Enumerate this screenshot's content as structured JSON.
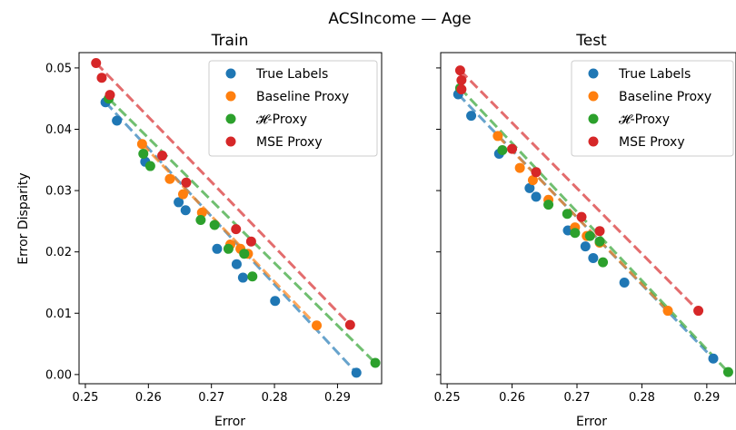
{
  "figure": {
    "suptitle": "ACSIncome — Age"
  },
  "colors": {
    "True Labels": "#1f77b4",
    "Baseline Proxy": "#ff7f0e",
    "H-Proxy": "#2ca02c",
    "MSE Proxy": "#d62728"
  },
  "chart_data": [
    {
      "type": "scatter",
      "title": "Train",
      "xlabel": "Error",
      "ylabel": "Error Disparity",
      "xlim": [
        0.249,
        0.297
      ],
      "ylim": [
        -0.0015,
        0.0525
      ],
      "xticks": [
        0.25,
        0.26,
        0.27,
        0.28,
        0.29
      ],
      "xtick_labels": [
        "0.25",
        "0.26",
        "0.27",
        "0.28",
        "0.29"
      ],
      "yticks": [
        0.0,
        0.01,
        0.02,
        0.03,
        0.04,
        0.05
      ],
      "ytick_labels": [
        "0.00",
        "0.01",
        "0.02",
        "0.03",
        "0.04",
        "0.05"
      ],
      "grid": false,
      "legend": "top-right",
      "series": [
        {
          "name": "True Labels",
          "color": "#1f77b4",
          "points": [
            [
              0.2532,
              0.0444
            ],
            [
              0.255,
              0.0414
            ],
            [
              0.2595,
              0.0347
            ],
            [
              0.2648,
              0.0281
            ],
            [
              0.2659,
              0.0268
            ],
            [
              0.2709,
              0.0205
            ],
            [
              0.274,
              0.018
            ],
            [
              0.275,
              0.0158
            ],
            [
              0.2801,
              0.012
            ],
            [
              0.293,
              0.0003
            ]
          ],
          "line": [
            [
              0.2532,
              0.0444
            ],
            [
              0.293,
              0.0003
            ]
          ]
        },
        {
          "name": "Baseline Proxy",
          "color": "#ff7f0e",
          "points": [
            [
              0.259,
              0.0376
            ],
            [
              0.2634,
              0.0319
            ],
            [
              0.2655,
              0.0294
            ],
            [
              0.2685,
              0.0264
            ],
            [
              0.273,
              0.0212
            ],
            [
              0.2746,
              0.0205
            ],
            [
              0.2758,
              0.0197
            ],
            [
              0.2867,
              0.008
            ]
          ],
          "line": [
            [
              0.259,
              0.0376
            ],
            [
              0.2867,
              0.008
            ]
          ]
        },
        {
          "name": "H-Proxy",
          "label": "𝓗-Proxy",
          "color": "#2ca02c",
          "points": [
            [
              0.2537,
              0.045
            ],
            [
              0.2592,
              0.036
            ],
            [
              0.2603,
              0.034
            ],
            [
              0.2683,
              0.0252
            ],
            [
              0.2705,
              0.0244
            ],
            [
              0.2727,
              0.0205
            ],
            [
              0.2752,
              0.0197
            ],
            [
              0.2765,
              0.016
            ],
            [
              0.296,
              0.0019
            ]
          ],
          "line": [
            [
              0.2537,
              0.045
            ],
            [
              0.296,
              0.0019
            ]
          ]
        },
        {
          "name": "MSE Proxy",
          "color": "#d62728",
          "points": [
            [
              0.2517,
              0.0508
            ],
            [
              0.2526,
              0.0484
            ],
            [
              0.2539,
              0.0456
            ],
            [
              0.2622,
              0.0357
            ],
            [
              0.266,
              0.0313
            ],
            [
              0.2739,
              0.0237
            ],
            [
              0.2763,
              0.0217
            ],
            [
              0.292,
              0.0081
            ]
          ],
          "line": [
            [
              0.2517,
              0.0508
            ],
            [
              0.292,
              0.0081
            ]
          ]
        }
      ]
    },
    {
      "type": "scatter",
      "title": "Test",
      "xlabel": "Error",
      "ylabel": "",
      "xlim": [
        0.249,
        0.2945
      ],
      "ylim": [
        -0.0015,
        0.0525
      ],
      "xticks": [
        0.25,
        0.26,
        0.27,
        0.28,
        0.29
      ],
      "xtick_labels": [
        "0.25",
        "0.26",
        "0.27",
        "0.28",
        "0.29"
      ],
      "yticks": [
        0.0,
        0.01,
        0.02,
        0.03,
        0.04,
        0.05
      ],
      "ytick_labels": [
        "",
        "",
        "",
        "",
        "",
        ""
      ],
      "grid": false,
      "legend": "top-right",
      "series": [
        {
          "name": "True Labels",
          "color": "#1f77b4",
          "points": [
            [
              0.2517,
              0.0457
            ],
            [
              0.2537,
              0.0422
            ],
            [
              0.258,
              0.036
            ],
            [
              0.2627,
              0.0304
            ],
            [
              0.2637,
              0.029
            ],
            [
              0.2686,
              0.0235
            ],
            [
              0.2713,
              0.0209
            ],
            [
              0.2725,
              0.019
            ],
            [
              0.2773,
              0.015
            ],
            [
              0.291,
              0.0026
            ]
          ],
          "line": [
            [
              0.2517,
              0.0457
            ],
            [
              0.291,
              0.0026
            ]
          ]
        },
        {
          "name": "Baseline Proxy",
          "color": "#ff7f0e",
          "points": [
            [
              0.2578,
              0.0389
            ],
            [
              0.2612,
              0.0337
            ],
            [
              0.2632,
              0.0317
            ],
            [
              0.2656,
              0.0285
            ],
            [
              0.2697,
              0.024
            ],
            [
              0.2715,
              0.0226
            ],
            [
              0.2735,
              0.0215
            ],
            [
              0.284,
              0.0104
            ]
          ],
          "line": [
            [
              0.2578,
              0.0389
            ],
            [
              0.284,
              0.0104
            ]
          ]
        },
        {
          "name": "H-Proxy",
          "label": "𝓗-Proxy",
          "color": "#2ca02c",
          "points": [
            [
              0.252,
              0.0467
            ],
            [
              0.2585,
              0.0366
            ],
            [
              0.2656,
              0.0277
            ],
            [
              0.2685,
              0.0262
            ],
            [
              0.2697,
              0.0231
            ],
            [
              0.272,
              0.0226
            ],
            [
              0.2735,
              0.0217
            ],
            [
              0.274,
              0.0183
            ],
            [
              0.2933,
              0.0004
            ]
          ],
          "line": [
            [
              0.252,
              0.0467
            ],
            [
              0.2933,
              0.0004
            ]
          ]
        },
        {
          "name": "MSE Proxy",
          "color": "#d62728",
          "points": [
            [
              0.252,
              0.0496
            ],
            [
              0.2522,
              0.048
            ],
            [
              0.2522,
              0.0465
            ],
            [
              0.26,
              0.0368
            ],
            [
              0.2637,
              0.033
            ],
            [
              0.2707,
              0.0257
            ],
            [
              0.2735,
              0.0234
            ],
            [
              0.2887,
              0.0104
            ]
          ],
          "line": [
            [
              0.252,
              0.0496
            ],
            [
              0.2887,
              0.0104
            ]
          ]
        }
      ]
    }
  ]
}
